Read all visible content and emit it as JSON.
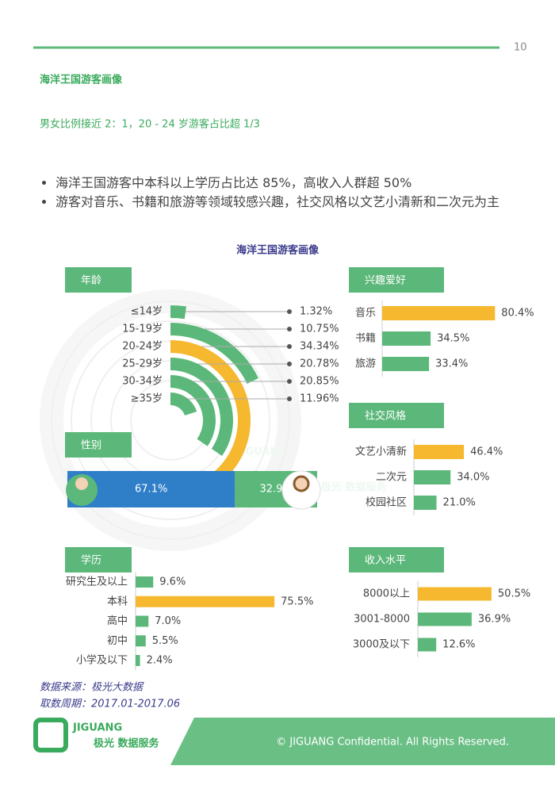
{
  "page_number": "10",
  "title": "海洋王国游客画像",
  "subtitle": "男女比例接近 2：1，20 - 24 岁游客占比超 1/3",
  "bullets": [
    "海洋王国游客中本科以上学历占比达 85%，高收入人群超 50%",
    "游客对音乐、书籍和旅游等领域较感兴趣，社交风格以文艺小清新和二次元为主"
  ],
  "infographic_title": "海洋王国游客画像",
  "chart_data": [
    {
      "type": "radial-bar",
      "title": "年龄",
      "categories": [
        "≤14岁",
        "15-19岁",
        "20-24岁",
        "25-29岁",
        "30-34岁",
        "≥35岁"
      ],
      "values": [
        1.32,
        10.75,
        34.34,
        20.78,
        20.85,
        11.96
      ],
      "value_labels": [
        "1.32%",
        "10.75%",
        "34.34%",
        "20.78%",
        "20.85%",
        "11.96%"
      ],
      "colors": [
        "#5cb87a",
        "#5cb87a",
        "#f5b82e",
        "#5cb87a",
        "#5cb87a",
        "#5cb87a"
      ]
    },
    {
      "type": "stacked-bar",
      "title": "性别",
      "values": [
        67.1,
        32.9
      ],
      "value_labels": [
        "67.1%",
        "32.9%"
      ],
      "colors": [
        "#2f7fc8",
        "#5cb87a"
      ]
    },
    {
      "type": "hbar",
      "title": "兴趣爱好",
      "categories": [
        "音乐",
        "书籍",
        "旅游"
      ],
      "values": [
        80.4,
        34.5,
        33.4
      ],
      "value_labels": [
        "80.4%",
        "34.5%",
        "33.4%"
      ],
      "colors": [
        "#f5b82e",
        "#5cb87a",
        "#5cb87a"
      ]
    },
    {
      "type": "hbar",
      "title": "社交风格",
      "categories": [
        "文艺小清新",
        "二次元",
        "校园社区"
      ],
      "values": [
        46.4,
        34.0,
        21.0
      ],
      "value_labels": [
        "46.4%",
        "34.0%",
        "21.0%"
      ],
      "colors": [
        "#f5b82e",
        "#5cb87a",
        "#5cb87a"
      ]
    },
    {
      "type": "hbar",
      "title": "学历",
      "categories": [
        "研究生及以上",
        "本科",
        "高中",
        "初中",
        "小学及以下"
      ],
      "values": [
        9.6,
        75.5,
        7.0,
        5.5,
        2.4
      ],
      "value_labels": [
        "9.6%",
        "75.5%",
        "7.0%",
        "5.5%",
        "2.4%"
      ],
      "colors": [
        "#5cb87a",
        "#f5b82e",
        "#5cb87a",
        "#5cb87a",
        "#5cb87a"
      ]
    },
    {
      "type": "hbar",
      "title": "收入水平",
      "categories": [
        "8000以上",
        "3001-8000",
        "3000及以下"
      ],
      "values": [
        50.5,
        36.9,
        12.6
      ],
      "value_labels": [
        "50.5%",
        "36.9%",
        "12.6%"
      ],
      "colors": [
        "#f5b82e",
        "#5cb87a",
        "#5cb87a"
      ]
    }
  ],
  "source": "数据来源：极光大数据",
  "period": "取数周期：2017.01-2017.06",
  "logo_name": "JIGUANG",
  "logo_tagline": "极光 数据服务",
  "footer": "© JIGUANG Confidential. All Rights Reserved."
}
